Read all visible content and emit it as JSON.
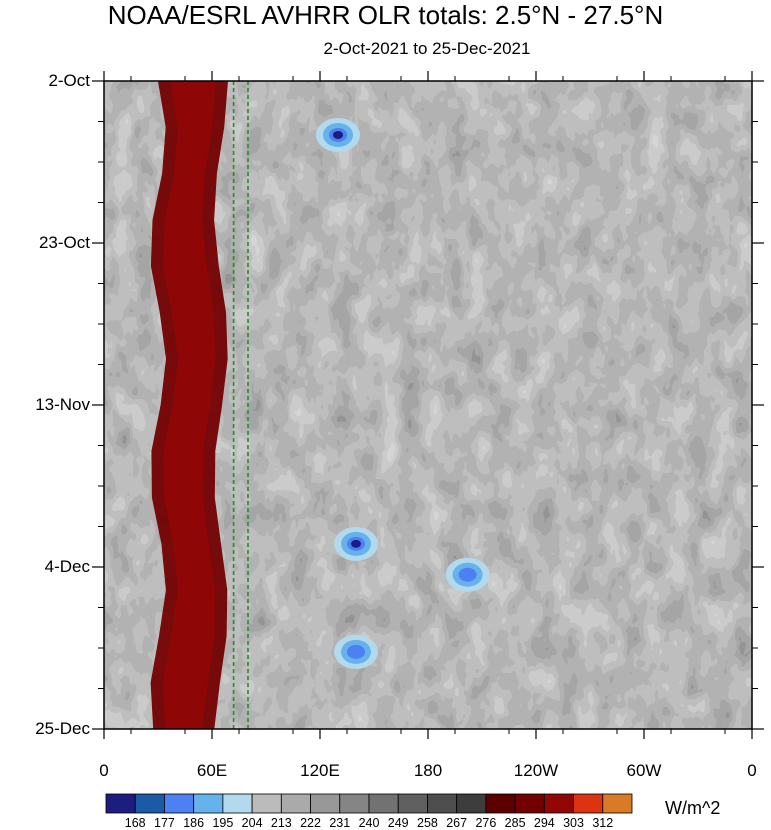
{
  "title": "NOAA/ESRL AVHRR OLR totals: 2.5°N - 27.5°N",
  "subtitle": "2-Oct-2021 to 25-Dec-2021",
  "units": "W/m^2",
  "chart_data": {
    "type": "heatmap",
    "title": "NOAA/ESRL AVHRR OLR totals: 2.5°N - 27.5°N",
    "subtitle": "2-Oct-2021 to 25-Dec-2021",
    "x_ticks": [
      {
        "lon": 0,
        "label": "0"
      },
      {
        "lon": 60,
        "label": "60E"
      },
      {
        "lon": 120,
        "label": "120E"
      },
      {
        "lon": 180,
        "label": "180"
      },
      {
        "lon": 240,
        "label": "120W"
      },
      {
        "lon": 300,
        "label": "60W"
      },
      {
        "lon": 360,
        "label": "0"
      }
    ],
    "xlim": [
      0,
      360
    ],
    "y_ticks": [
      {
        "day": 0,
        "label": "2-Oct"
      },
      {
        "day": 21,
        "label": "23-Oct"
      },
      {
        "day": 42,
        "label": "13-Nov"
      },
      {
        "day": 63,
        "label": "4-Dec"
      },
      {
        "day": 84,
        "label": "25-Dec"
      }
    ],
    "ylim": [
      0,
      84
    ],
    "y_reversed": true,
    "colorbar": {
      "levels": [
        168,
        177,
        186,
        195,
        204,
        213,
        222,
        231,
        240,
        249,
        258,
        267,
        276,
        285,
        294,
        303,
        312
      ],
      "colors": [
        "#1d1d80",
        "#1a5aa6",
        "#4d80f2",
        "#66b2eb",
        "#b3d9ec",
        "#bbbbbb",
        "#aaaaaa",
        "#989898",
        "#858585",
        "#727272",
        "#606060",
        "#4e4e4e",
        "#3d3d3d",
        "#5c0000",
        "#730000",
        "#930606",
        "#dd3311",
        "#d97a26"
      ],
      "units": "W/m^2"
    },
    "reference_lines": [
      {
        "lon": 72,
        "style": "dashed",
        "color": "#2a8a2a"
      },
      {
        "lon": 80,
        "style": "dashed",
        "color": "#2a8a2a"
      }
    ],
    "features": [
      {
        "kind": "high-OLR band",
        "lon_range": [
          30,
          65
        ],
        "day_range": [
          0,
          84
        ],
        "level": "294-303"
      },
      {
        "kind": "low-OLR convection",
        "lon": 130,
        "day": 7,
        "level": "168-195"
      },
      {
        "kind": "low-OLR convection",
        "lon": 140,
        "day": 60,
        "level": "168-186"
      },
      {
        "kind": "low-OLR convection",
        "lon": 202,
        "day": 64,
        "level": "186-195"
      },
      {
        "kind": "low-OLR convection",
        "lon": 140,
        "day": 74,
        "level": "186-195"
      }
    ]
  }
}
